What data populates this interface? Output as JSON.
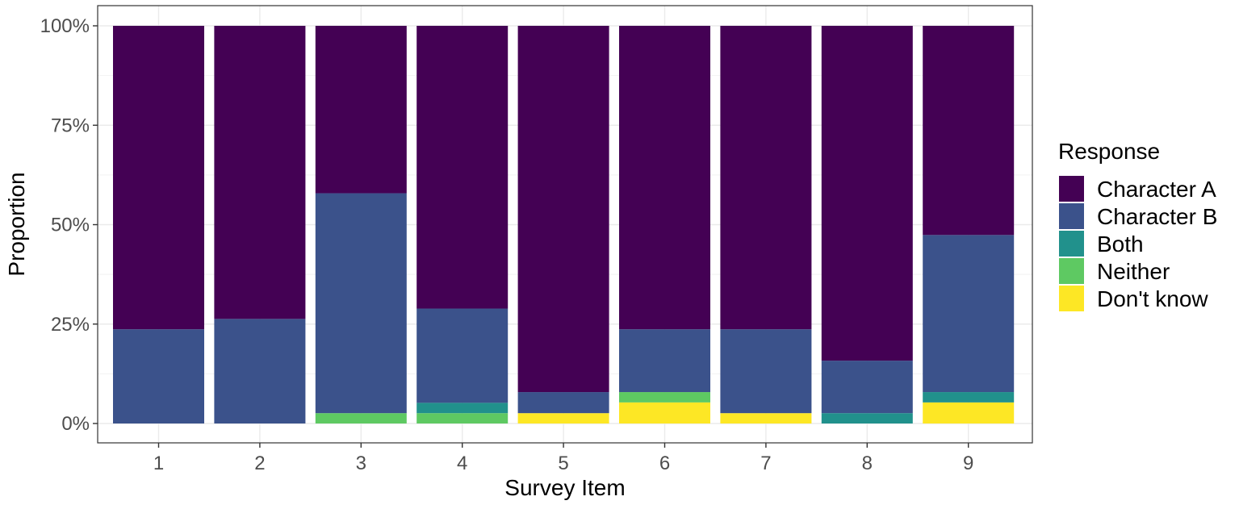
{
  "chart_data": {
    "type": "bar",
    "stacked": true,
    "normalized": true,
    "categories": [
      "1",
      "2",
      "3",
      "4",
      "5",
      "6",
      "7",
      "8",
      "9"
    ],
    "xlabel": "Survey Item",
    "ylabel": "Proportion",
    "ylim": [
      0,
      1
    ],
    "yticks": [
      0,
      0.25,
      0.5,
      0.75,
      1
    ],
    "ytick_labels": [
      "0%",
      "25%",
      "50%",
      "75%",
      "100%"
    ],
    "grid": true,
    "legend": {
      "title": "Response",
      "position": "right"
    },
    "series": [
      {
        "name": "Don't know",
        "color": "#FDE725",
        "values": [
          0,
          0,
          0,
          0,
          0.026,
          0.053,
          0.026,
          0,
          0.053
        ]
      },
      {
        "name": "Neither",
        "color": "#5EC962",
        "values": [
          0,
          0,
          0.026,
          0.026,
          0,
          0.026,
          0,
          0,
          0
        ]
      },
      {
        "name": "Both",
        "color": "#21918C",
        "values": [
          0,
          0,
          0,
          0.026,
          0,
          0,
          0,
          0.026,
          0.026
        ]
      },
      {
        "name": "Character B",
        "color": "#3B528B",
        "values": [
          0.237,
          0.263,
          0.553,
          0.237,
          0.053,
          0.158,
          0.211,
          0.132,
          0.395
        ]
      },
      {
        "name": "Character A",
        "color": "#440154",
        "values": [
          0.763,
          0.737,
          0.421,
          0.711,
          0.921,
          0.763,
          0.763,
          0.842,
          0.526
        ]
      }
    ],
    "legend_order": [
      "Character A",
      "Character B",
      "Both",
      "Neither",
      "Don't know"
    ]
  }
}
